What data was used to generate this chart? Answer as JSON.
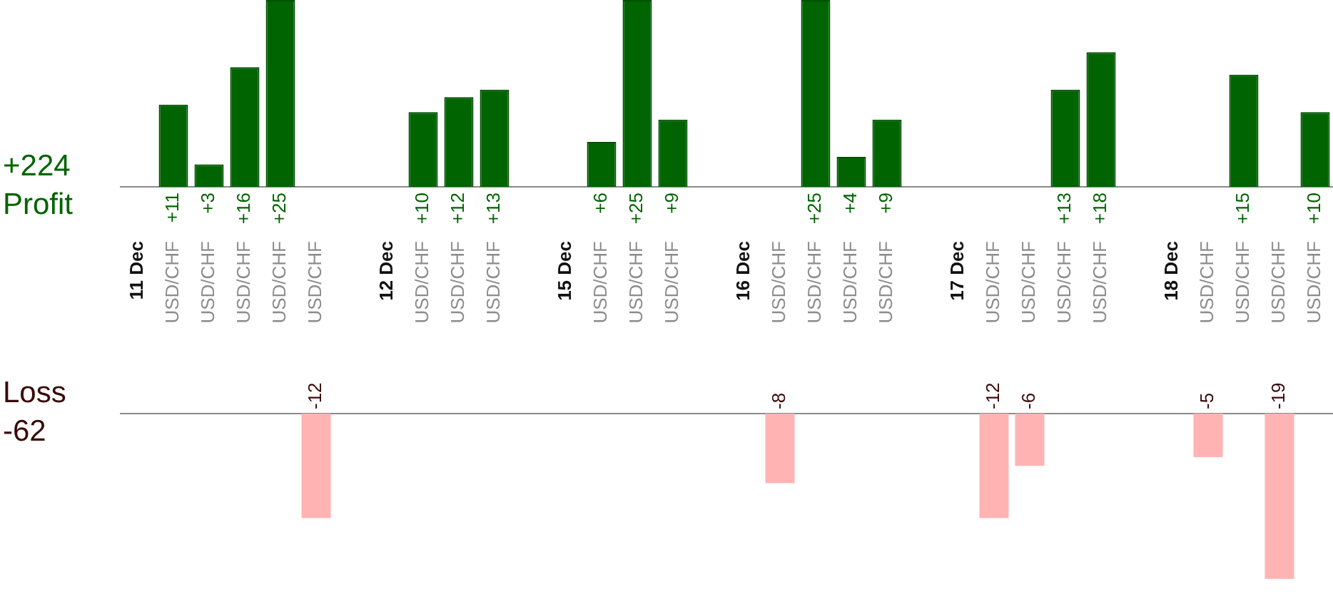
{
  "chart_data": [
    {
      "type": "bar",
      "categories": [
        "11 Dec",
        "USD/CHF",
        "USD/CHF",
        "USD/CHF",
        "USD/CHF",
        "USD/CHF",
        null,
        "12 Dec",
        "USD/CHF",
        "USD/CHF",
        "USD/CHF",
        null,
        "15 Dec",
        "USD/CHF",
        "USD/CHF",
        "USD/CHF",
        null,
        "16 Dec",
        "USD/CHF",
        "USD/CHF",
        "USD/CHF",
        "USD/CHF",
        null,
        "17 Dec",
        "USD/CHF",
        "USD/CHF",
        "USD/CHF",
        "USD/CHF",
        null,
        "18 Dec",
        "USD/CHF",
        "USD/CHF",
        "USD/CHF",
        "USD/CHF"
      ],
      "values": [
        null,
        11,
        3,
        16,
        25,
        null,
        null,
        null,
        10,
        12,
        13,
        null,
        null,
        6,
        25,
        9,
        null,
        null,
        null,
        25,
        4,
        9,
        null,
        null,
        null,
        null,
        13,
        18,
        null,
        null,
        null,
        15,
        null,
        10
      ],
      "value_labels": [
        null,
        "+11",
        "+3",
        "+16",
        "+25",
        null,
        null,
        null,
        "+10",
        "+12",
        "+13",
        null,
        null,
        "+6",
        "+25",
        "+9",
        null,
        null,
        null,
        "+25",
        "+4",
        "+9",
        null,
        null,
        null,
        null,
        "+13",
        "+18",
        null,
        null,
        null,
        "+15",
        null,
        "+10"
      ],
      "color": "#006400",
      "legend": false,
      "tick_labels": "x",
      "annotations": [
        "+224",
        "Profit"
      ]
    },
    {
      "type": "bar",
      "categories": [
        null,
        null,
        null,
        null,
        null,
        null,
        null,
        null,
        null,
        null,
        null,
        null,
        null,
        null,
        null,
        null,
        null,
        null,
        null,
        null,
        null,
        null,
        null,
        null,
        null,
        null,
        null,
        null,
        null,
        null,
        null,
        null,
        null,
        null
      ],
      "values": [
        null,
        null,
        null,
        null,
        null,
        -12,
        null,
        null,
        null,
        null,
        null,
        null,
        null,
        null,
        null,
        null,
        null,
        null,
        -8,
        null,
        null,
        null,
        null,
        null,
        -12,
        -6,
        null,
        null,
        null,
        null,
        -5,
        null,
        -19,
        null
      ],
      "color": "#ffb3b3",
      "legend": false,
      "tick_labels": false,
      "data_labels": true,
      "annotations": [
        "Loss",
        "-62"
      ]
    }
  ]
}
